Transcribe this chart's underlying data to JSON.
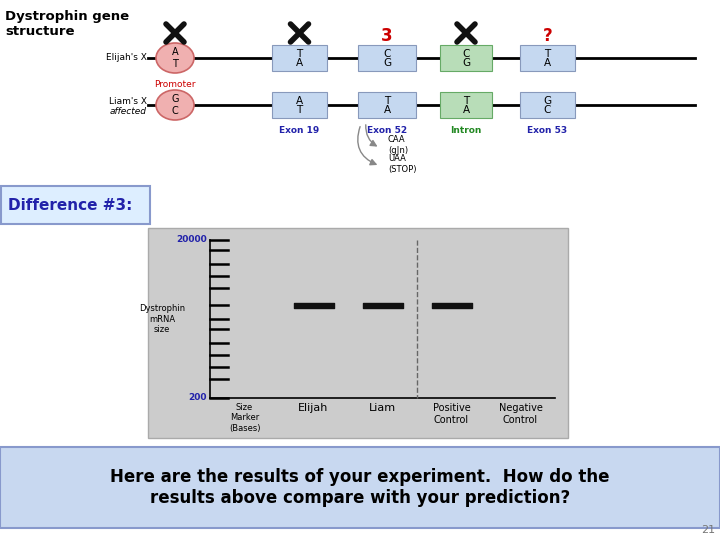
{
  "title": "Dystrophin gene\nstructure",
  "diff_label": "Difference #3:",
  "bottom_text": "Here are the results of your experiment.  How do the\nresults above compare with your prediction?",
  "slide_number": "21",
  "bg_color": "#ffffff",
  "gel_bg": "#cccccc",
  "exon_bg": "#c5d8f0",
  "intron_bg": "#b8ddb8",
  "promoter_color": "#f0b0b0",
  "promoter_edge": "#cc6666",
  "x_mark_color": "#111111",
  "number3_color": "#cc0000",
  "question_color": "#cc0000",
  "blue_text": "#2222aa",
  "green_text": "#228822",
  "diff_box_fill": "#ddeeff",
  "diff_box_edge": "#8899cc",
  "bottom_box_fill": "#c8d8f0",
  "bottom_box_edge": "#8899cc",
  "exon_edge": "#8899bb",
  "intron_edge": "#66aa66",
  "gel_band_color": "#111111",
  "marker_sizes": [
    20000,
    15000,
    10000,
    7000,
    5000,
    3000,
    2000,
    1500,
    1000,
    700,
    500,
    350,
    200
  ],
  "band_level": 3000,
  "lane_labels": [
    "Size\nMarker\n(Bases)",
    "Elijah",
    "Liam",
    "Positive\nControl",
    "Negative\nControl"
  ]
}
